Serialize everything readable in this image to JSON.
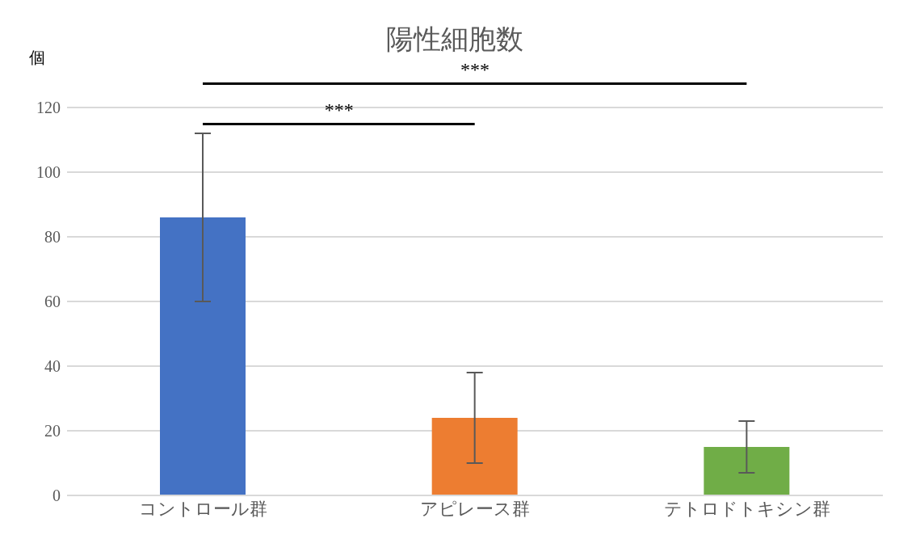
{
  "chart_data": {
    "type": "bar",
    "title": "陽性細胞数",
    "ylabel": "個",
    "categories": [
      "コントロール群",
      "アピレース群",
      "テトロドトキシン群"
    ],
    "values": [
      86,
      24,
      15
    ],
    "errors": [
      26,
      14,
      8
    ],
    "colors": [
      "#4472c4",
      "#ed7d31",
      "#70ad47"
    ],
    "ylim": [
      0,
      120
    ],
    "yticks": [
      0,
      20,
      40,
      60,
      80,
      100,
      120
    ],
    "grid": "y",
    "annotations": [
      "***",
      "***"
    ]
  }
}
